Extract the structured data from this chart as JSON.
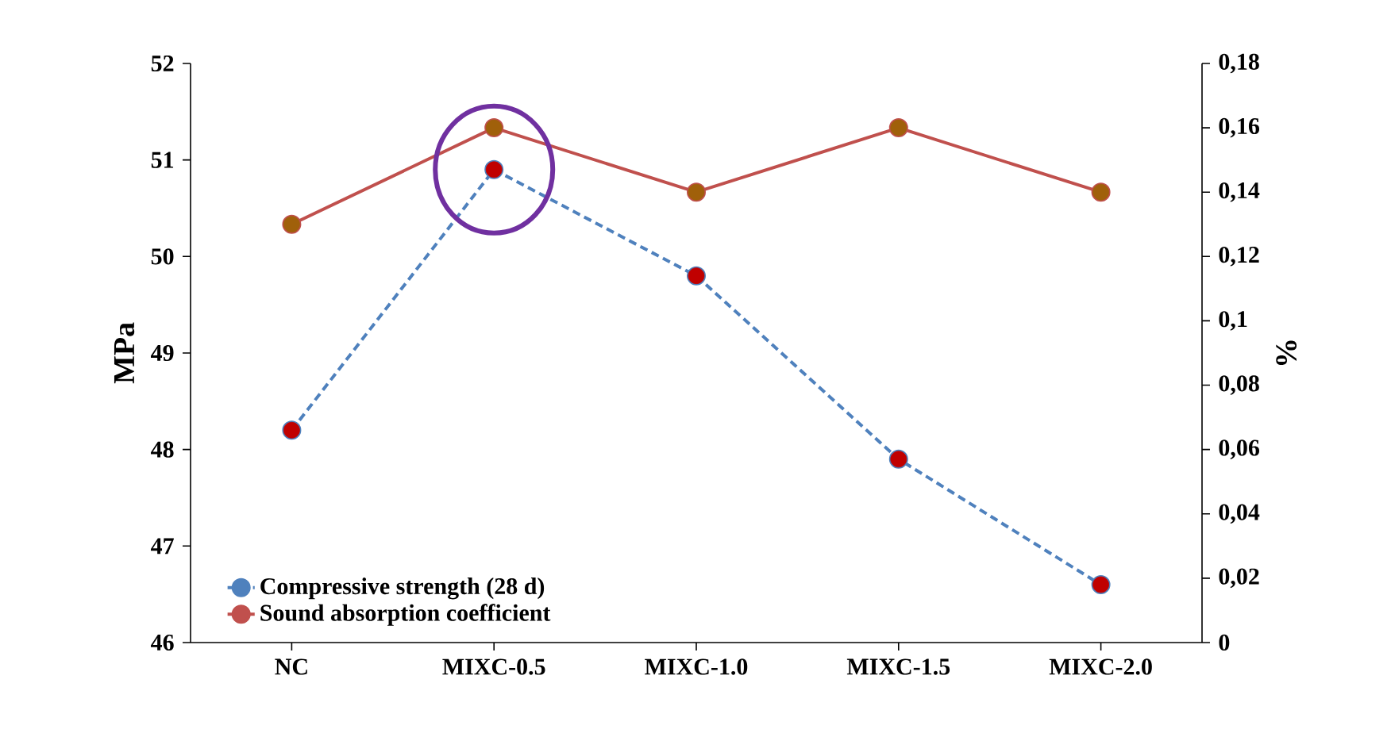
{
  "chart_data": {
    "type": "line",
    "categories": [
      "NC",
      "MIXC-0.5",
      "MIXC-1.0",
      "MIXC-1.5",
      "MIXC-2.0"
    ],
    "series": [
      {
        "name": "Compressive strength (28 d)",
        "color": "#4f81bd",
        "colors": [
          "#c00000",
          "#c00000",
          "#c00000",
          "#c00000",
          "#c00000"
        ],
        "line_style": "dashed",
        "values": [
          48.2,
          50.9,
          49.8,
          47.9,
          46.6
        ]
      },
      {
        "name": "Sound absorption coefficient",
        "color": "#c0504d",
        "colors": [
          "#a0600a",
          "#a0600a",
          "#a0600a",
          "#a0600a",
          "#a0600a"
        ],
        "line_style": "solid",
        "axis": "y2",
        "values": [
          0.13,
          0.16,
          0.14,
          0.16,
          0.14
        ]
      }
    ],
    "marker": "circle",
    "ylabel": "MPa",
    "y2label": "%",
    "ylim": [
      46,
      52
    ],
    "yticks": [
      46,
      47,
      48,
      49,
      50,
      51,
      52
    ],
    "y2lim": [
      0,
      0.18
    ],
    "y2ticks": [
      0,
      {
        "value": 0.02,
        "label": "0,02"
      },
      {
        "value": 0.04,
        "label": "0,04"
      },
      {
        "value": 0.06,
        "label": "0,06"
      },
      {
        "value": 0.08,
        "label": "0,08"
      },
      {
        "value": 0.1,
        "label": "0,1"
      },
      {
        "value": 0.12,
        "label": "0,12"
      },
      {
        "value": 0.14,
        "label": "0,14"
      },
      {
        "value": 0.16,
        "label": "0,16"
      },
      {
        "value": 0.18,
        "label": "0,18"
      }
    ],
    "grid": false,
    "legend": "bottom left"
  }
}
